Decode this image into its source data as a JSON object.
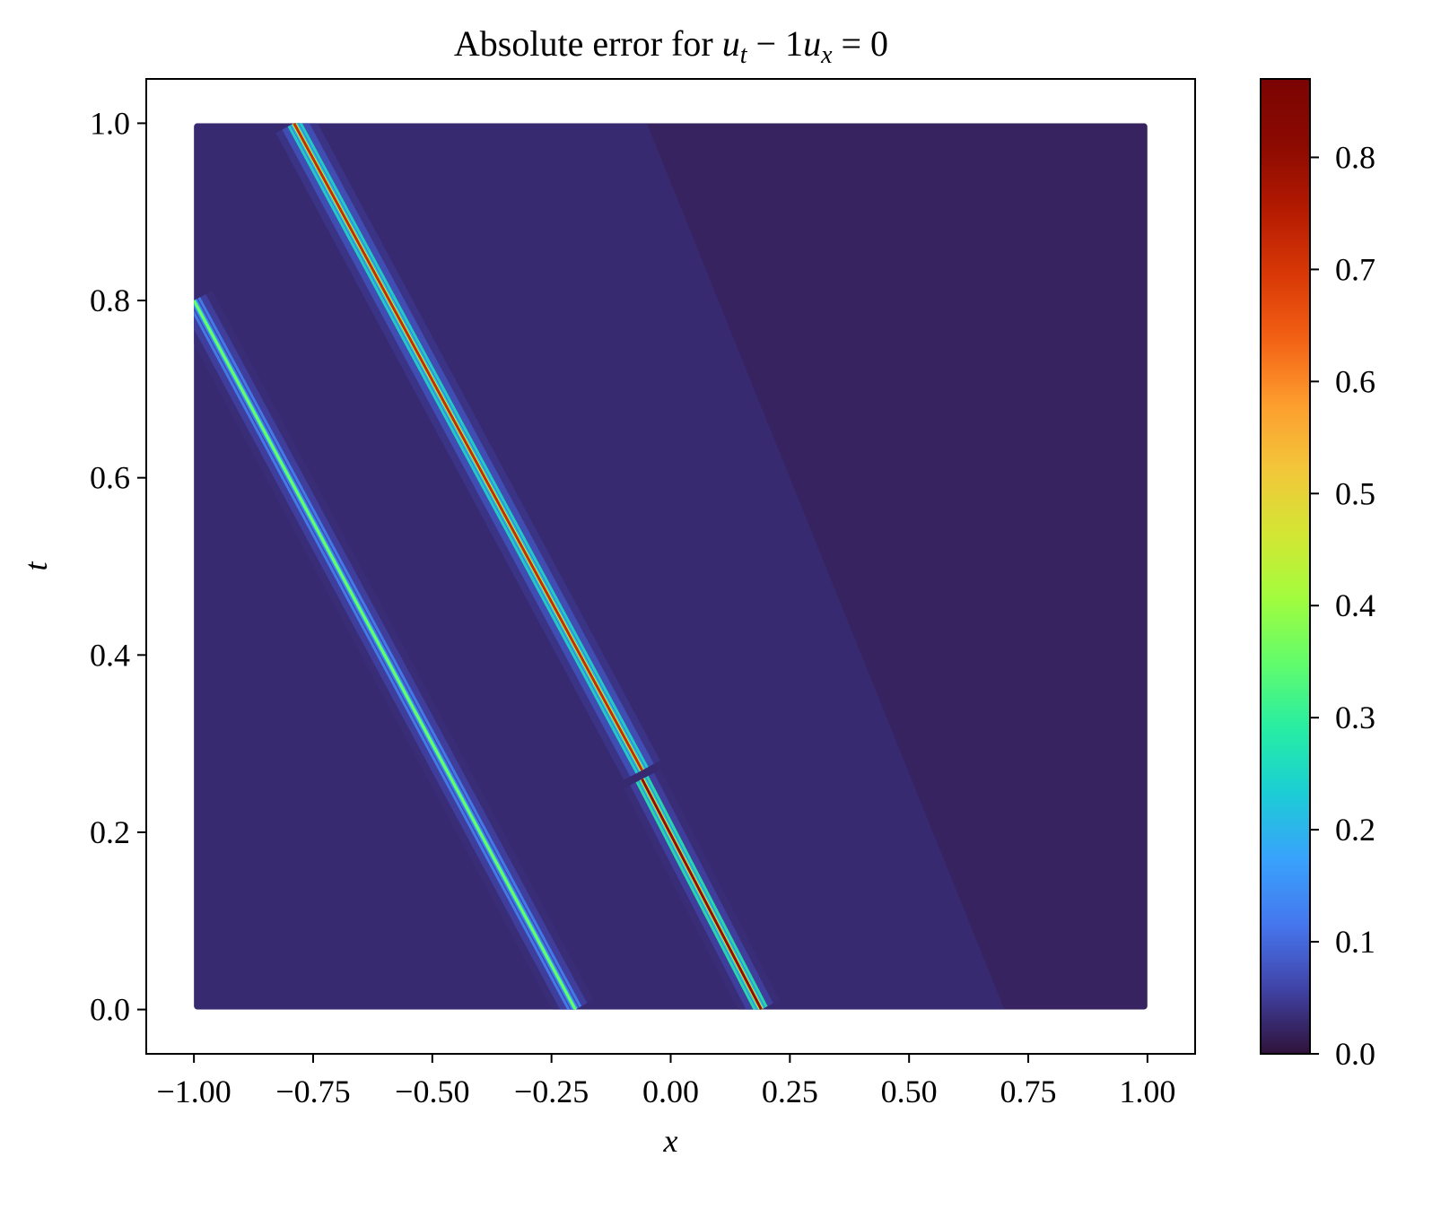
{
  "chart_data": {
    "type": "heatmap",
    "title": {
      "prefix": "Absolute error for ",
      "math": [
        {
          "text": "u",
          "italic": true
        },
        {
          "text": "t",
          "italic": true,
          "sub": true
        },
        {
          "text": " − 1",
          "italic": false
        },
        {
          "text": "u",
          "italic": true
        },
        {
          "text": "x",
          "italic": true,
          "sub": true
        },
        {
          "text": " = 0",
          "italic": false
        }
      ]
    },
    "xlabel": "x",
    "ylabel": "t",
    "xlim": [
      -1.1,
      1.1
    ],
    "ylim": [
      -0.05,
      1.05
    ],
    "data_extent": {
      "x": [
        -1.0,
        1.0
      ],
      "t": [
        0.0,
        1.0
      ]
    },
    "xticks": [
      -1.0,
      -0.75,
      -0.5,
      -0.25,
      0.0,
      0.25,
      0.5,
      0.75,
      1.0
    ],
    "xtick_labels": [
      "−1.00",
      "−0.75",
      "−0.50",
      "−0.25",
      "0.00",
      "0.25",
      "0.50",
      "0.75",
      "1.00"
    ],
    "yticks": [
      0.0,
      0.2,
      0.4,
      0.6,
      0.8,
      1.0
    ],
    "ytick_labels": [
      "0.0",
      "0.2",
      "0.4",
      "0.6",
      "0.8",
      "1.0"
    ],
    "colormap": "turbo",
    "colorbar": {
      "range": [
        0.0,
        0.87
      ],
      "ticks": [
        0.0,
        0.1,
        0.2,
        0.3,
        0.4,
        0.5,
        0.6,
        0.7,
        0.8
      ],
      "tick_labels": [
        "0.0",
        "0.1",
        "0.2",
        "0.3",
        "0.4",
        "0.5",
        "0.6",
        "0.7",
        "0.8"
      ]
    },
    "background_error": 0.02,
    "features": [
      {
        "name": "error-band-left",
        "t": [
          0.0,
          0.8
        ],
        "x_start": [
          -0.2,
          0.0
        ],
        "x_end": [
          -1.0,
          0.8
        ],
        "peak": 0.36,
        "halo": 0.06
      },
      {
        "name": "error-band-upper",
        "t": [
          0.27,
          1.0
        ],
        "x_start": [
          -0.06,
          0.27
        ],
        "x_end": [
          -0.79,
          1.0
        ],
        "peak": 0.72,
        "halo": 0.08
      },
      {
        "name": "error-band-lower",
        "t": [
          0.0,
          0.27
        ],
        "x_start": [
          0.19,
          0.0
        ],
        "x_end": [
          -0.06,
          0.26
        ],
        "peak": 0.8,
        "halo": 0.06
      }
    ]
  }
}
